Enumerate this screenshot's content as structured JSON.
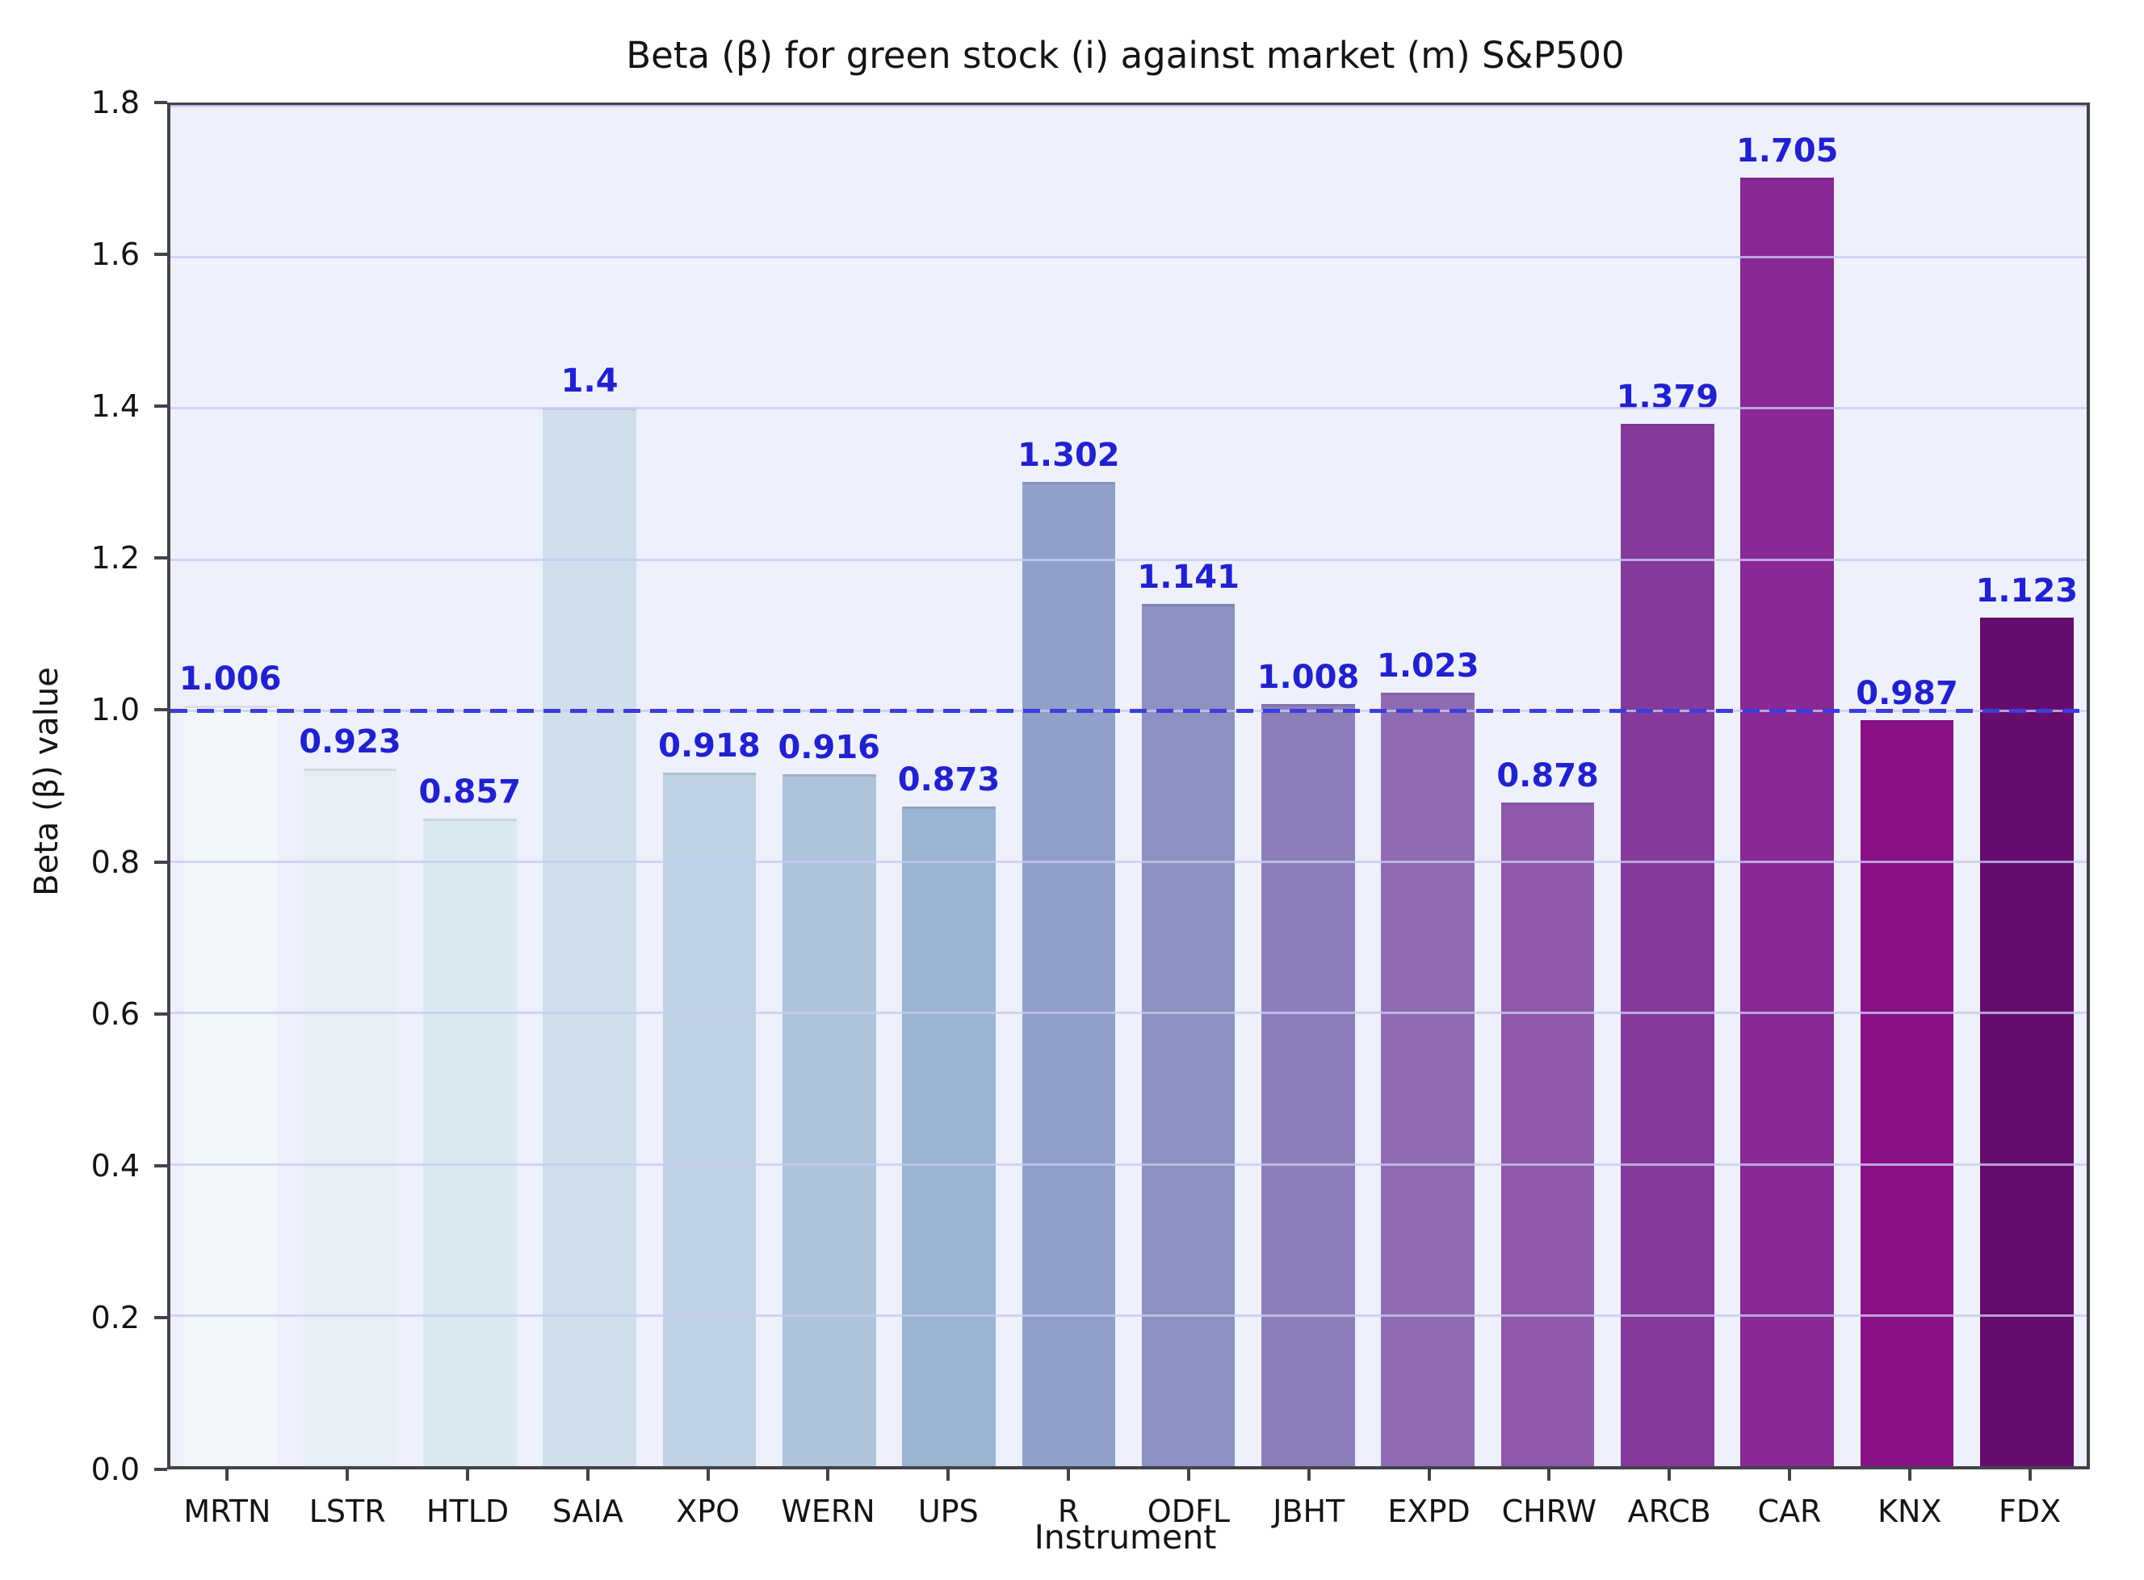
{
  "chart_data": {
    "type": "bar",
    "title": "Beta (β) for green stock (i) against market (m) S&P500",
    "xlabel": "Instrument",
    "ylabel": "Beta (β) value",
    "categories": [
      "MRTN",
      "LSTR",
      "HTLD",
      "SAIA",
      "XPO",
      "WERN",
      "UPS",
      "R",
      "ODFL",
      "JBHT",
      "EXPD",
      "CHRW",
      "ARCB",
      "CAR",
      "KNX",
      "FDX"
    ],
    "values": [
      1.006,
      0.923,
      0.857,
      1.4,
      0.918,
      0.916,
      0.873,
      1.302,
      1.141,
      1.008,
      1.023,
      0.878,
      1.379,
      1.705,
      0.987,
      1.123
    ],
    "value_labels": [
      "1.006",
      "0.923",
      "0.857",
      "1.4",
      "0.918",
      "0.916",
      "0.873",
      "1.302",
      "1.141",
      "1.008",
      "1.023",
      "0.878",
      "1.379",
      "1.705",
      "0.987",
      "1.123"
    ],
    "bar_colors": [
      "#f2f7fa",
      "#e7eff5",
      "#dbeaf2",
      "#cfdfec",
      "#bed2e4",
      "#adc4db",
      "#9cb3d2",
      "#90a0ca",
      "#8c91c2",
      "#8d7eba",
      "#8e6bb2",
      "#8f58a9",
      "#853a9b",
      "#8a2896",
      "#8a1088",
      "#660c6e"
    ],
    "ylim": [
      0.0,
      1.8
    ],
    "yticks": [
      0.0,
      0.2,
      0.4,
      0.6,
      0.8,
      1.0,
      1.2,
      1.4,
      1.6,
      1.8
    ],
    "grid": true,
    "legend": null,
    "reference_line": {
      "value": 1.0,
      "style": "dashed",
      "color": "#3d3dd8"
    },
    "value_label_color": "#2121ce",
    "plot_background": "#eef0fb",
    "gridline_color": "#c6caf2",
    "spine_color": "#43434b"
  }
}
